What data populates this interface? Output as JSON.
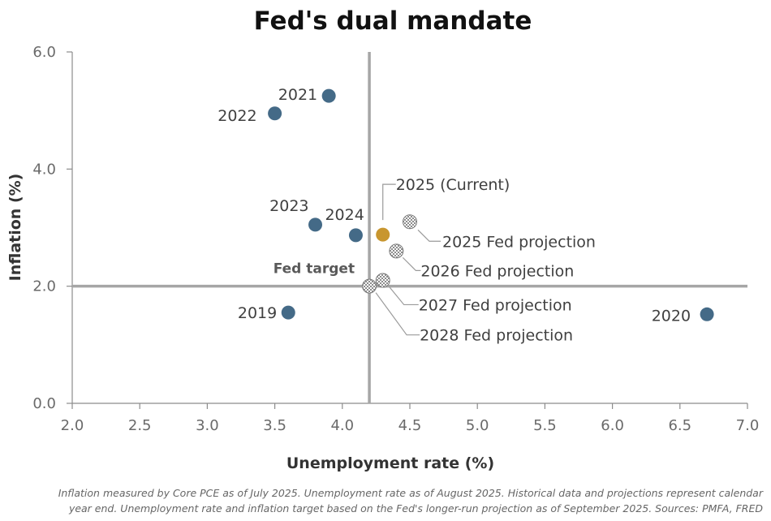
{
  "chart_data": {
    "type": "scatter",
    "title": "Fed's dual mandate",
    "xlabel": "Unemployment rate (%)",
    "ylabel": "Inflation (%)",
    "xlim": [
      2.0,
      7.0
    ],
    "ylim": [
      0.0,
      6.0
    ],
    "x_ticks": [
      "2.0",
      "2.5",
      "3.0",
      "3.5",
      "4.0",
      "4.5",
      "5.0",
      "5.5",
      "6.0",
      "6.5",
      "7.0"
    ],
    "y_ticks": [
      "0.0",
      "2.0",
      "4.0",
      "6.0"
    ],
    "reference_lines": {
      "unemployment_target": 4.2,
      "inflation_target": 2.0,
      "inflation_target_label": "Fed target"
    },
    "colors": {
      "historical": "#446a87",
      "current": "#c8962f",
      "projection": "#9a9a9a",
      "reference_line": "#a6a6a6"
    },
    "points": [
      {
        "label": "2019",
        "x": 3.6,
        "y": 1.55,
        "kind": "historical"
      },
      {
        "label": "2020",
        "x": 6.7,
        "y": 1.52,
        "kind": "historical"
      },
      {
        "label": "2021",
        "x": 3.9,
        "y": 5.25,
        "kind": "historical"
      },
      {
        "label": "2022",
        "x": 3.5,
        "y": 4.95,
        "kind": "historical"
      },
      {
        "label": "2023",
        "x": 3.8,
        "y": 3.05,
        "kind": "historical"
      },
      {
        "label": "2024",
        "x": 4.1,
        "y": 2.87,
        "kind": "historical"
      },
      {
        "label": "2025 (Current)",
        "x": 4.3,
        "y": 2.88,
        "kind": "current"
      },
      {
        "label": "2025 Fed projection",
        "x": 4.5,
        "y": 3.1,
        "kind": "projection"
      },
      {
        "label": "2026 Fed projection",
        "x": 4.4,
        "y": 2.6,
        "kind": "projection"
      },
      {
        "label": "2027 Fed projection",
        "x": 4.3,
        "y": 2.1,
        "kind": "projection"
      },
      {
        "label": "2028 Fed projection",
        "x": 4.2,
        "y": 2.0,
        "kind": "projection"
      }
    ]
  },
  "footnote_line1": "Inflation measured by Core PCE as of July 2025. Unemployment rate as of August 2025. Historical data and projections represent calendar",
  "footnote_line2": "year end. Unemployment rate and inflation target based on the Fed's longer-run projection as of September 2025. Sources: PMFA, FRED"
}
